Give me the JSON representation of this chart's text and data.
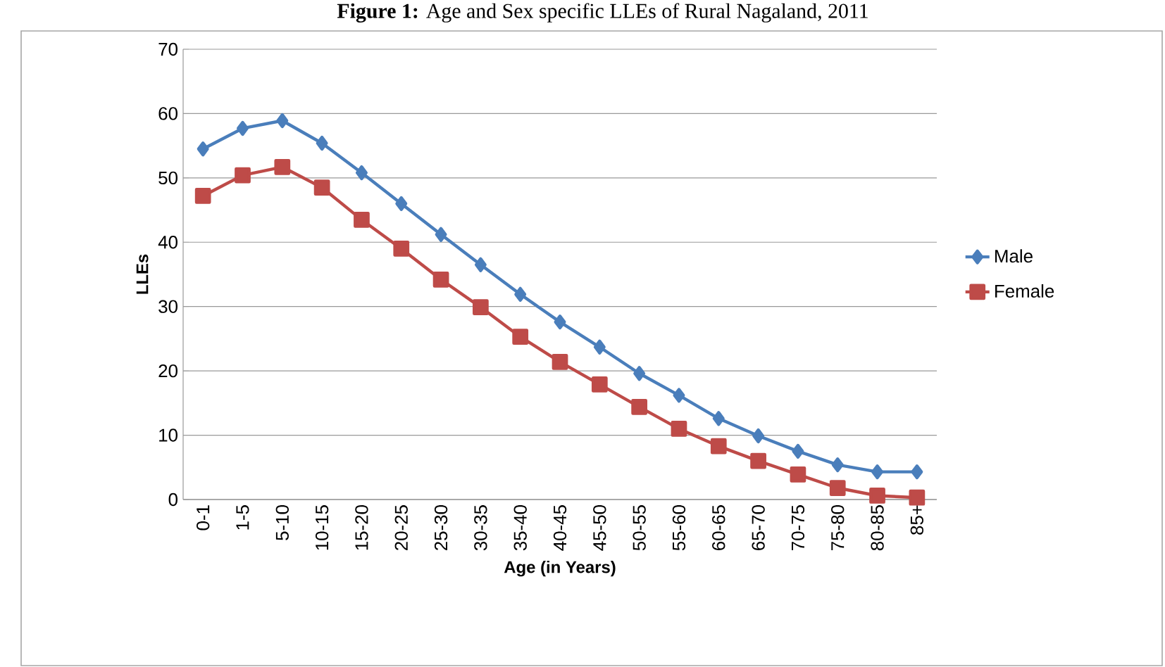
{
  "chart_data": {
    "type": "line",
    "title": "**Figure 1:** Age and Sex specific LLEs of Rural Nagaland, 2011",
    "xlabel": "Age (in Years)",
    "ylabel": "LLEs",
    "categories": [
      "0-1",
      "1-5",
      "5-10",
      "10-15",
      "15-20",
      "20-25",
      "25-30",
      "30-35",
      "35-40",
      "40-45",
      "45-50",
      "50-55",
      "55-60",
      "60-65",
      "65-70",
      "70-75",
      "75-80",
      "80-85",
      "85+"
    ],
    "series": [
      {
        "name": "Male",
        "color": "#4a7ebb",
        "marker": "diamond",
        "values": [
          54.5,
          57.7,
          58.9,
          55.4,
          50.8,
          46.0,
          41.2,
          36.5,
          31.9,
          27.6,
          23.7,
          19.6,
          16.2,
          12.6,
          9.9,
          7.5,
          5.4,
          4.3,
          4.3
        ]
      },
      {
        "name": "Female",
        "color": "#be4b48",
        "marker": "square",
        "values": [
          47.2,
          50.4,
          51.7,
          48.5,
          43.5,
          39.0,
          34.2,
          29.9,
          25.3,
          21.4,
          17.9,
          14.4,
          11.0,
          8.3,
          6.0,
          3.9,
          1.8,
          0.6,
          0.3
        ]
      }
    ],
    "ylim": [
      0,
      70
    ],
    "yticks": [
      0,
      10,
      20,
      30,
      40,
      50,
      60,
      70
    ],
    "grid": "y",
    "legend": "right"
  }
}
